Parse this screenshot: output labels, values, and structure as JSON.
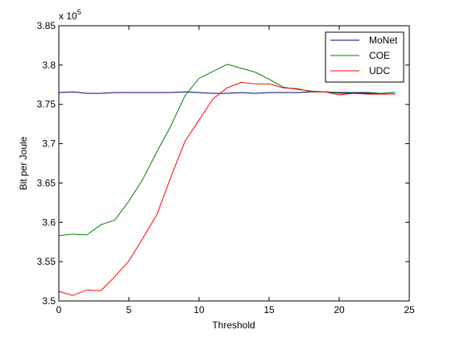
{
  "chart_data": {
    "type": "line",
    "title": "",
    "xlabel": "Threshold",
    "ylabel": "Bit per Joule",
    "y_exponent_label": "x 10",
    "y_exponent_power": "5",
    "xlim": [
      0,
      25
    ],
    "ylim": [
      3.5,
      3.85
    ],
    "x_ticks": [
      0,
      5,
      10,
      15,
      20,
      25
    ],
    "x_tick_labels": [
      "0",
      "5",
      "10",
      "15",
      "20",
      "25"
    ],
    "y_ticks": [
      3.5,
      3.55,
      3.6,
      3.65,
      3.7,
      3.75,
      3.8,
      3.85
    ],
    "y_tick_labels": [
      "3.5",
      "3.55",
      "3.6",
      "3.65",
      "3.7",
      "3.75",
      "3.8",
      "3.85"
    ],
    "grid": false,
    "legend_position": "top-right",
    "x": [
      0,
      1,
      2,
      3,
      4,
      5,
      6,
      7,
      8,
      9,
      10,
      11,
      12,
      13,
      14,
      15,
      16,
      17,
      18,
      19,
      20,
      21,
      22,
      23,
      24
    ],
    "series": [
      {
        "name": "MoNet",
        "color": "#00007f",
        "values": [
          3.765,
          3.766,
          3.764,
          3.764,
          3.765,
          3.765,
          3.765,
          3.765,
          3.765,
          3.766,
          3.765,
          3.764,
          3.764,
          3.765,
          3.764,
          3.765,
          3.765,
          3.765,
          3.766,
          3.766,
          3.765,
          3.765,
          3.765,
          3.764,
          3.765
        ]
      },
      {
        "name": "COE",
        "color": "#007f00",
        "values": [
          3.583,
          3.585,
          3.584,
          3.597,
          3.603,
          3.627,
          3.655,
          3.69,
          3.723,
          3.761,
          3.783,
          3.792,
          3.801,
          3.796,
          3.791,
          3.782,
          3.772,
          3.769,
          3.767,
          3.766,
          3.764,
          3.764,
          3.764,
          3.764,
          3.765
        ]
      },
      {
        "name": "UDC",
        "color": "#ff0000",
        "values": [
          3.512,
          3.507,
          3.514,
          3.513,
          3.531,
          3.551,
          3.58,
          3.61,
          3.658,
          3.703,
          3.73,
          3.757,
          3.771,
          3.778,
          3.776,
          3.776,
          3.771,
          3.77,
          3.766,
          3.766,
          3.762,
          3.764,
          3.763,
          3.763,
          3.763
        ]
      }
    ]
  }
}
